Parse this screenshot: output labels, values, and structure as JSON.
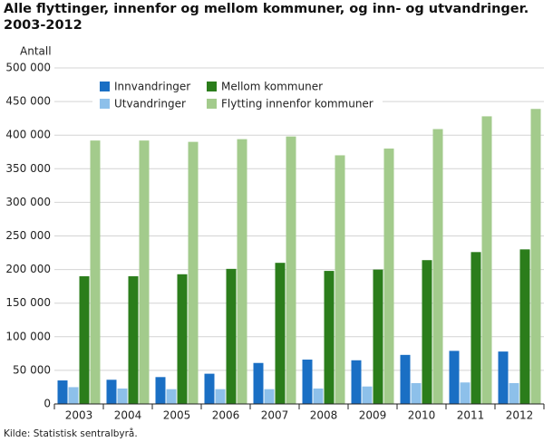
{
  "chart_data": {
    "type": "bar",
    "title": "Alle flyttinger, innenfor og mellom kommuner, og inn- og utvandringer.",
    "subtitle": "2003-2012",
    "y_label": "Antall",
    "source": "Kilde: Statistisk sentralbyrå.",
    "categories": [
      "2003",
      "2004",
      "2005",
      "2006",
      "2007",
      "2008",
      "2009",
      "2010",
      "2011",
      "2012"
    ],
    "series": [
      {
        "name": "Innvandringer",
        "color": "#1a6fc4",
        "values": [
          35000,
          36000,
          40000,
          45000,
          61000,
          66000,
          65000,
          73000,
          79000,
          78000
        ]
      },
      {
        "name": "Utvandringer",
        "color": "#8dc0ea",
        "values": [
          25000,
          23000,
          22000,
          22000,
          22000,
          23000,
          26000,
          31000,
          32000,
          31000
        ]
      },
      {
        "name": "Mellom kommuner",
        "color": "#2b7d1b",
        "values": [
          190000,
          190000,
          193000,
          201000,
          210000,
          198000,
          200000,
          214000,
          226000,
          230000
        ]
      },
      {
        "name": "Flytting innenfor kommuner",
        "color": "#a3cb8c",
        "values": [
          392000,
          392000,
          390000,
          394000,
          398000,
          370000,
          380000,
          409000,
          428000,
          439000
        ]
      }
    ],
    "ylim": [
      0,
      500000
    ],
    "yticks": [
      0,
      {
        "value": 50000,
        "label": "50 000"
      },
      {
        "value": 100000,
        "label": "100 000"
      },
      {
        "value": 150000,
        "label": "150 000"
      },
      {
        "value": 200000,
        "label": "200 000"
      },
      {
        "value": 250000,
        "label": "250 000"
      },
      {
        "value": 300000,
        "label": "300 000"
      },
      {
        "value": 350000,
        "label": "350 000"
      },
      {
        "value": 400000,
        "label": "400 000"
      },
      {
        "value": 450000,
        "label": "450 000"
      },
      {
        "value": 500000,
        "label": "500 000"
      }
    ],
    "grid": true,
    "legend": "upper left"
  }
}
